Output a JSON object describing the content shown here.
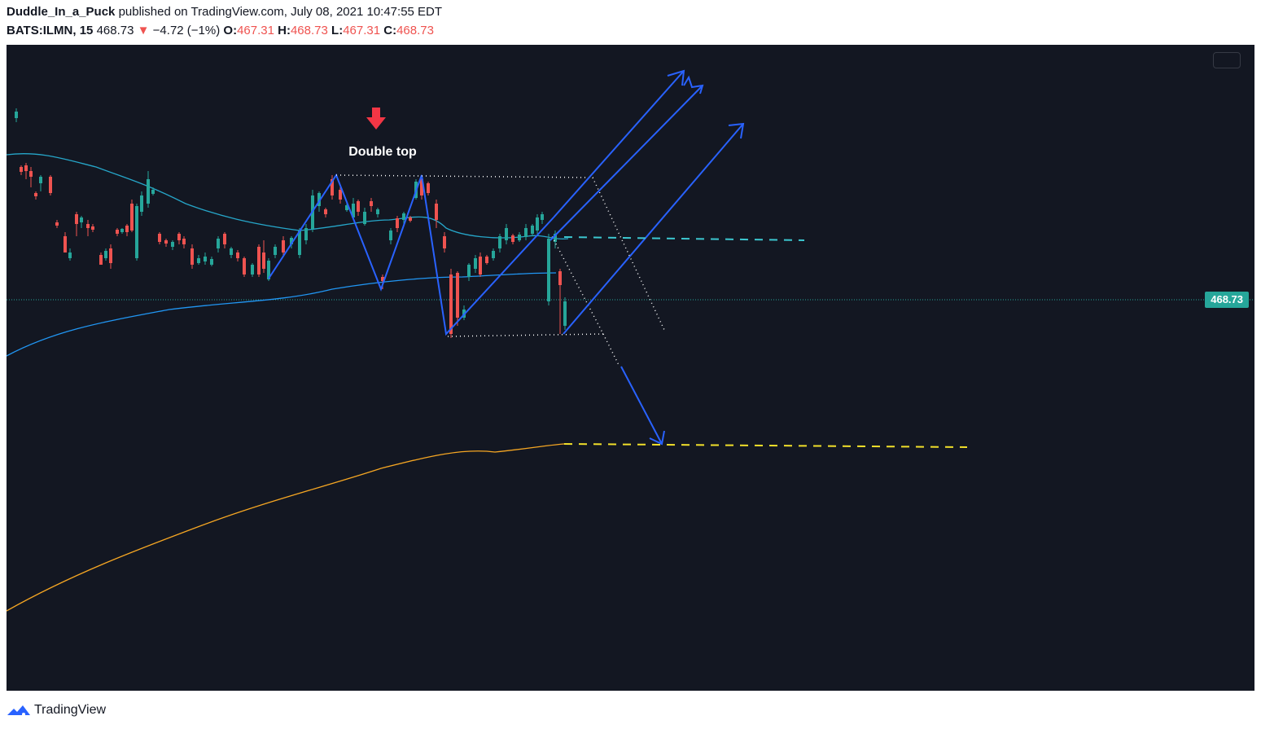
{
  "header": {
    "author": "Duddle_In_a_Puck",
    "published_text": "published on TradingView.com, July 08, 2021 10:47:55 EDT",
    "symbol": "BATS:ILMN, 15",
    "last": "468.73",
    "change_arrow": "▼",
    "change": "−4.72 (−1%)",
    "o_label": "O:",
    "o_value": "467.31",
    "h_label": "H:",
    "h_value": "468.73",
    "l_label": "L:",
    "l_value": "467.31",
    "c_label": "C:",
    "c_value": "468.73"
  },
  "chart": {
    "annotation": "Double top",
    "price_label": "468.73",
    "colors": {
      "background": "#131722",
      "up_candle": "#26a69a",
      "down_candle": "#ef5350",
      "ma_short": "#26a6c9",
      "ma_mid": "#2196f3",
      "ma_long": "#f5a623",
      "drawing_blue": "#2962ff",
      "target_yellow": "#f2e02a",
      "resistance_cyan": "#3cc7d0",
      "arrow_red": "#f23645"
    }
  },
  "footer": {
    "brand": "TradingView",
    "logo_icon": "tradingview-logo-icon"
  }
}
